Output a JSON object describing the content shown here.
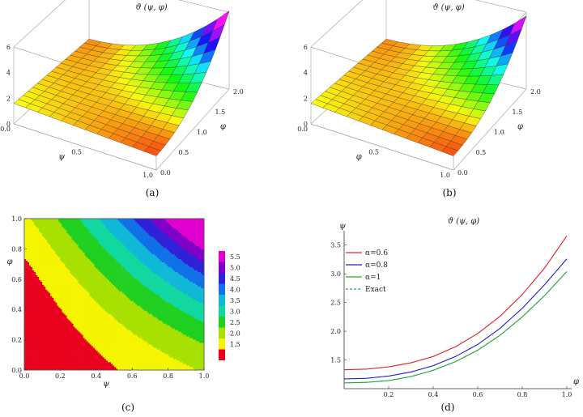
{
  "captions": [
    "(a)",
    "(b)",
    "(c)",
    "(d)"
  ],
  "chart_data": [
    {
      "id": "a",
      "type": "surface",
      "title": "ϑ (ψ, φ)",
      "xlabel": "ψ",
      "ylabel": "φ",
      "x_ticks": [
        "0.0",
        "0.5",
        "1.0"
      ],
      "y_ticks": [
        "0.0",
        "0.5",
        "1.0",
        "1.5",
        "2.0"
      ],
      "z_ticks": [
        "0",
        "2",
        "4",
        "6"
      ],
      "xlim": [
        0,
        1
      ],
      "ylim": [
        0,
        2
      ],
      "zlim": [
        0,
        6
      ],
      "alpha": 0.6
    },
    {
      "id": "b",
      "type": "surface",
      "title": "ϑ (ψ, φ)",
      "xlabel": "φ",
      "ylabel": "φ",
      "x_ticks": [
        "0.0",
        "0.5",
        "1.0"
      ],
      "y_ticks": [
        "0.0",
        "0.5",
        "1.0",
        "1.5",
        "2.0"
      ],
      "z_ticks": [
        "0",
        "2",
        "4",
        "6"
      ],
      "xlim": [
        0,
        1
      ],
      "ylim": [
        0,
        2
      ],
      "zlim": [
        0,
        6
      ],
      "alpha": 1
    },
    {
      "id": "c",
      "type": "heatmap",
      "title": "",
      "xlabel": "ψ",
      "ylabel": "φ",
      "xlim": [
        0,
        1
      ],
      "ylim": [
        0,
        1
      ],
      "x_ticks": [
        "0.0",
        "0.2",
        "0.4",
        "0.6",
        "0.8",
        "1.0"
      ],
      "y_ticks": [
        "0.0",
        "0.2",
        "0.4",
        "0.6",
        "0.8",
        "1.0"
      ],
      "contour_levels": [
        1.5,
        2.0,
        2.5,
        3.0,
        3.5,
        4.0,
        4.5,
        5.0,
        5.5
      ],
      "legend_labels": [
        "5.5",
        "5.0",
        "4.5",
        "4.0",
        "3.5",
        "3.0",
        "2.5",
        "2.0",
        "1.5"
      ],
      "band_colors": [
        "#e8001c",
        "#f5f500",
        "#a8e000",
        "#20d020",
        "#10d8a0",
        "#10b8d8",
        "#1070e8",
        "#3020d8",
        "#8000c8",
        "#e000d0",
        "#ff2020"
      ]
    },
    {
      "id": "d",
      "type": "line",
      "title": "ϑ (ψ, φ)",
      "xlabel": "φ",
      "ylabel": "ψ",
      "xlim": [
        0,
        1
      ],
      "ylim": [
        1.0,
        3.75
      ],
      "x_ticks": [
        0.2,
        0.4,
        0.6,
        0.8,
        1.0
      ],
      "y_ticks": [
        1.5,
        2.0,
        2.5,
        3.0,
        3.5
      ],
      "x_tick_labels": [
        "0.2",
        "0.4",
        "0.6",
        "0.8",
        "1.0"
      ],
      "y_tick_labels": [
        "1.5",
        "2.0",
        "2.5",
        "3.0",
        "3.5"
      ],
      "x": [
        0,
        0.1,
        0.2,
        0.3,
        0.4,
        0.5,
        0.6,
        0.7,
        0.8,
        0.9,
        1.0
      ],
      "series": [
        {
          "name": "α=0.6",
          "color": "#e02020",
          "dash": "",
          "values": [
            1.33,
            1.34,
            1.38,
            1.45,
            1.56,
            1.73,
            1.96,
            2.26,
            2.64,
            3.1,
            3.66
          ]
        },
        {
          "name": "α=0.8",
          "color": "#2020c0",
          "dash": "",
          "values": [
            1.17,
            1.18,
            1.22,
            1.29,
            1.4,
            1.56,
            1.77,
            2.05,
            2.4,
            2.81,
            3.26
          ]
        },
        {
          "name": "α=1",
          "color": "#20b020",
          "dash": "",
          "values": [
            1.1,
            1.11,
            1.14,
            1.21,
            1.32,
            1.47,
            1.67,
            1.93,
            2.25,
            2.62,
            3.04
          ]
        },
        {
          "name": "Exact",
          "color": "#20a060",
          "dash": "3,2",
          "values": [
            1.1,
            1.11,
            1.14,
            1.21,
            1.32,
            1.47,
            1.67,
            1.93,
            2.25,
            2.62,
            3.04
          ]
        }
      ]
    }
  ]
}
